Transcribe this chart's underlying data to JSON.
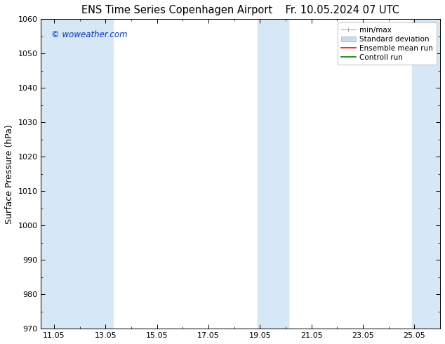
{
  "title_left": "ENS Time Series Copenhagen Airport",
  "title_right": "Fr. 10.05.2024 07 UTC",
  "ylabel": "Surface Pressure (hPa)",
  "ylim": [
    970,
    1060
  ],
  "yticks": [
    970,
    980,
    990,
    1000,
    1010,
    1020,
    1030,
    1040,
    1050,
    1060
  ],
  "xtick_positions": [
    0,
    2,
    4,
    6,
    8,
    10,
    12,
    14
  ],
  "xtick_labels": [
    "11.05",
    "13.05",
    "15.05",
    "17.05",
    "19.05",
    "21.05",
    "23.05",
    "25.05"
  ],
  "xlim": [
    -0.5,
    15.0
  ],
  "watermark": "© woweather.com",
  "watermark_color": "#0033cc",
  "bg_color": "#ffffff",
  "plot_bg_color": "#ffffff",
  "shaded_bands": [
    {
      "x_start": -0.5,
      "x_end": 2.3
    },
    {
      "x_start": 7.9,
      "x_end": 9.1
    },
    {
      "x_start": 13.9,
      "x_end": 15.0
    }
  ],
  "band_color": "#d6e8f5",
  "legend_items": [
    {
      "label": "min/max",
      "color": "#aaaaaa",
      "type": "errorbar"
    },
    {
      "label": "Standard deviation",
      "color": "#c8dced",
      "type": "fill"
    },
    {
      "label": "Ensemble mean run",
      "color": "#ff0000",
      "type": "line"
    },
    {
      "label": "Controll run",
      "color": "#008000",
      "type": "line"
    }
  ],
  "tick_color": "#000000",
  "axis_color": "#000000",
  "title_fontsize": 10.5,
  "label_fontsize": 9,
  "tick_fontsize": 8
}
